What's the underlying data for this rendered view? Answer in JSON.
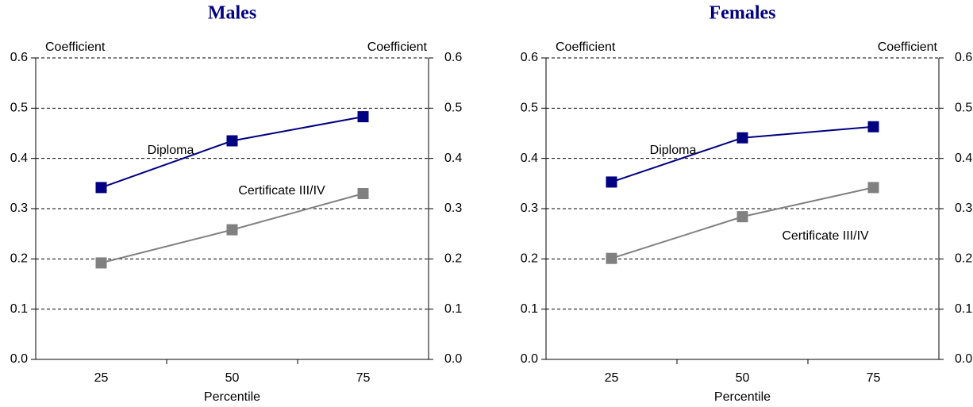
{
  "chart_data": [
    {
      "type": "line",
      "title": "Males",
      "xlabel": "Percentile",
      "ylabel": "Coefficient",
      "y2label": "Coefficient",
      "categories": [
        "25",
        "50",
        "75"
      ],
      "series": [
        {
          "name": "Diploma",
          "color": "#000080",
          "values": [
            0.342,
            0.435,
            0.483
          ]
        },
        {
          "name": "Certificate III/IV",
          "color": "#808080",
          "values": [
            0.192,
            0.258,
            0.33
          ]
        }
      ],
      "ylim": [
        0,
        0.6
      ],
      "yticks": [
        {
          "value": 0,
          "label": "0.0"
        },
        0.1,
        0.2,
        0.3,
        0.4,
        0.5,
        0.6
      ],
      "y2lim": [
        0,
        0.6
      ],
      "y2ticks": [
        {
          "value": 0,
          "label": "0.0"
        },
        0.1,
        0.2,
        0.3,
        0.4,
        0.5,
        0.6
      ],
      "grid": true
    },
    {
      "type": "line",
      "title": "Females",
      "xlabel": "Percentile",
      "ylabel": "Coefficient",
      "y2label": "Coefficient",
      "categories": [
        "25",
        "50",
        "75"
      ],
      "series": [
        {
          "name": "Diploma",
          "color": "#000080",
          "values": [
            0.353,
            0.441,
            0.463
          ]
        },
        {
          "name": "Certificate III/IV",
          "color": "#808080",
          "values": [
            0.201,
            0.284,
            0.342
          ]
        }
      ],
      "ylim": [
        0,
        0.6
      ],
      "yticks": [
        {
          "value": 0,
          "label": "0.0"
        },
        0.1,
        0.2,
        0.3,
        0.4,
        0.5,
        0.6
      ],
      "y2lim": [
        0,
        0.6
      ],
      "y2ticks": [
        {
          "value": 0,
          "label": "0.0"
        },
        0.1,
        0.2,
        0.3,
        0.4,
        0.5,
        0.6
      ],
      "grid": true
    }
  ]
}
